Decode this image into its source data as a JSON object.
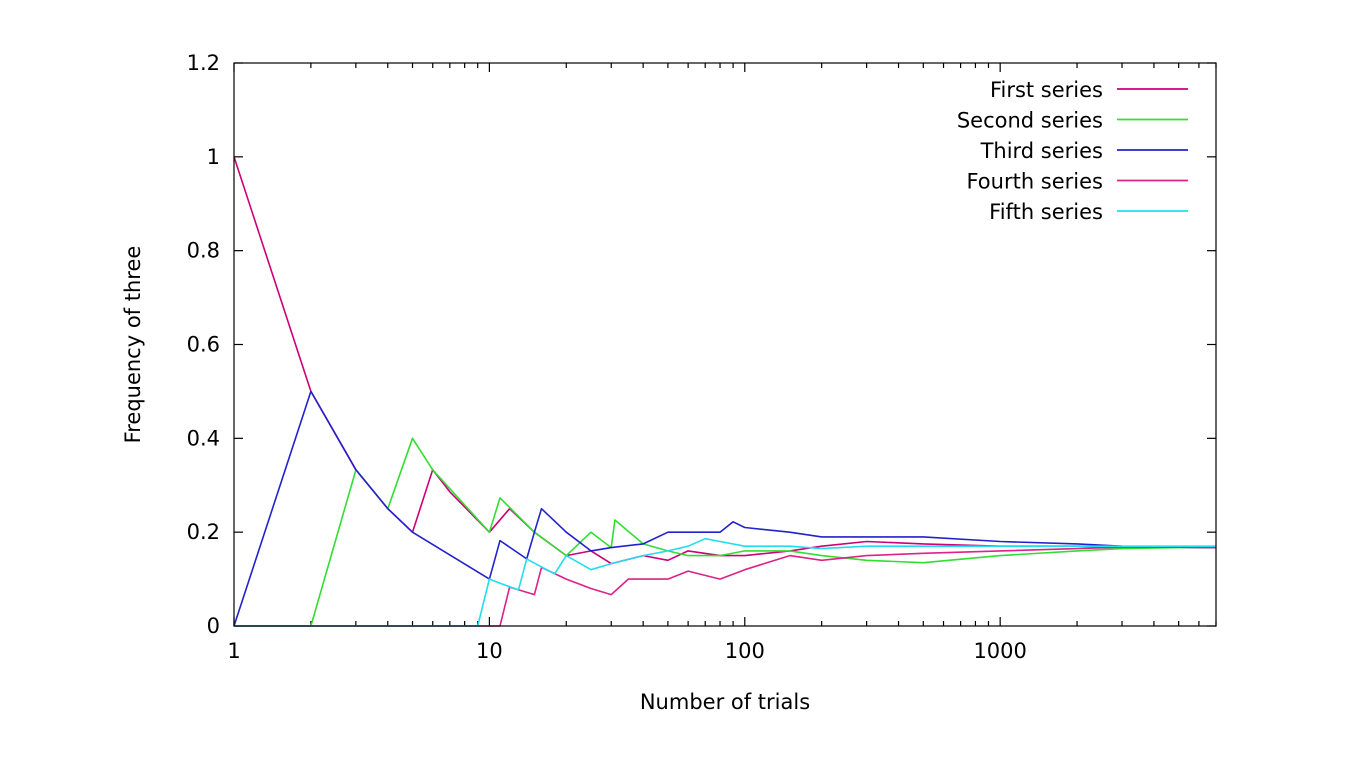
{
  "chart_data": {
    "type": "line",
    "xlabel": "Number of trials",
    "ylabel": "Frequency of three",
    "xscale": "log",
    "xlim": [
      1,
      7000
    ],
    "ylim": [
      0,
      1.2
    ],
    "grid": false,
    "legend_position": "top-right",
    "x_ticks": [
      {
        "value": 1,
        "label": "1"
      },
      {
        "value": 10,
        "label": "10"
      },
      {
        "value": 100,
        "label": "100"
      },
      {
        "value": 1000,
        "label": "1000"
      }
    ],
    "y_ticks": [
      {
        "value": 0,
        "label": "0"
      },
      {
        "value": 0.2,
        "label": "0.2"
      },
      {
        "value": 0.4,
        "label": "0.4"
      },
      {
        "value": 0.6,
        "label": "0.6"
      },
      {
        "value": 0.8,
        "label": "0.8"
      },
      {
        "value": 1,
        "label": "1"
      },
      {
        "value": 1.2,
        "label": "1.2"
      }
    ],
    "series": [
      {
        "name": "First series",
        "color": "#cc0077",
        "points": [
          [
            1,
            1
          ],
          [
            2,
            0.5
          ],
          [
            3,
            0.333
          ],
          [
            4,
            0.25
          ],
          [
            5,
            0.2
          ],
          [
            6,
            0.333
          ],
          [
            7,
            0.286
          ],
          [
            10,
            0.2
          ],
          [
            12,
            0.25
          ],
          [
            15,
            0.2
          ],
          [
            20,
            0.15
          ],
          [
            25,
            0.16
          ],
          [
            30,
            0.133
          ],
          [
            40,
            0.15
          ],
          [
            50,
            0.14
          ],
          [
            60,
            0.16
          ],
          [
            80,
            0.15
          ],
          [
            100,
            0.15
          ],
          [
            150,
            0.16
          ],
          [
            200,
            0.17
          ],
          [
            300,
            0.18
          ],
          [
            500,
            0.175
          ],
          [
            1000,
            0.17
          ],
          [
            2000,
            0.17
          ],
          [
            3000,
            0.168
          ],
          [
            5000,
            0.168
          ],
          [
            7000,
            0.167
          ]
        ]
      },
      {
        "name": "Second series",
        "color": "#33dd33",
        "points": [
          [
            1,
            0
          ],
          [
            2,
            0
          ],
          [
            3,
            0.333
          ],
          [
            4,
            0.25
          ],
          [
            5,
            0.4
          ],
          [
            6,
            0.333
          ],
          [
            10,
            0.2
          ],
          [
            11,
            0.273
          ],
          [
            15,
            0.2
          ],
          [
            20,
            0.15
          ],
          [
            25,
            0.2
          ],
          [
            30,
            0.167
          ],
          [
            31,
            0.226
          ],
          [
            40,
            0.175
          ],
          [
            50,
            0.16
          ],
          [
            60,
            0.15
          ],
          [
            80,
            0.15
          ],
          [
            100,
            0.16
          ],
          [
            150,
            0.16
          ],
          [
            200,
            0.15
          ],
          [
            300,
            0.14
          ],
          [
            500,
            0.135
          ],
          [
            1000,
            0.15
          ],
          [
            2000,
            0.16
          ],
          [
            3000,
            0.165
          ],
          [
            5000,
            0.167
          ],
          [
            7000,
            0.167
          ]
        ]
      },
      {
        "name": "Third series",
        "color": "#2222cc",
        "points": [
          [
            1,
            0
          ],
          [
            2,
            0.5
          ],
          [
            3,
            0.333
          ],
          [
            4,
            0.25
          ],
          [
            5,
            0.2
          ],
          [
            10,
            0.1
          ],
          [
            11,
            0.182
          ],
          [
            14,
            0.143
          ],
          [
            15,
            0.2
          ],
          [
            16,
            0.25
          ],
          [
            20,
            0.2
          ],
          [
            25,
            0.16
          ],
          [
            30,
            0.167
          ],
          [
            40,
            0.175
          ],
          [
            50,
            0.2
          ],
          [
            60,
            0.2
          ],
          [
            80,
            0.2
          ],
          [
            90,
            0.222
          ],
          [
            100,
            0.21
          ],
          [
            150,
            0.2
          ],
          [
            200,
            0.19
          ],
          [
            300,
            0.19
          ],
          [
            500,
            0.19
          ],
          [
            1000,
            0.18
          ],
          [
            2000,
            0.175
          ],
          [
            3000,
            0.17
          ],
          [
            5000,
            0.168
          ],
          [
            7000,
            0.167
          ]
        ]
      },
      {
        "name": "Fourth series",
        "color": "#dd2288",
        "points": [
          [
            1,
            0
          ],
          [
            10,
            0
          ],
          [
            11,
            0
          ],
          [
            12,
            0.083
          ],
          [
            15,
            0.067
          ],
          [
            16,
            0.125
          ],
          [
            20,
            0.1
          ],
          [
            25,
            0.08
          ],
          [
            30,
            0.067
          ],
          [
            35,
            0.1
          ],
          [
            40,
            0.1
          ],
          [
            50,
            0.1
          ],
          [
            60,
            0.117
          ],
          [
            80,
            0.1
          ],
          [
            100,
            0.12
          ],
          [
            150,
            0.15
          ],
          [
            200,
            0.14
          ],
          [
            300,
            0.15
          ],
          [
            500,
            0.155
          ],
          [
            1000,
            0.16
          ],
          [
            2000,
            0.165
          ],
          [
            3000,
            0.168
          ],
          [
            5000,
            0.168
          ],
          [
            7000,
            0.167
          ]
        ]
      },
      {
        "name": "Fifth series",
        "color": "#22ddee",
        "points": [
          [
            1,
            0
          ],
          [
            9,
            0
          ],
          [
            10,
            0.1
          ],
          [
            11,
            0.091
          ],
          [
            13,
            0.077
          ],
          [
            14,
            0.143
          ],
          [
            18,
            0.111
          ],
          [
            20,
            0.15
          ],
          [
            25,
            0.12
          ],
          [
            30,
            0.133
          ],
          [
            40,
            0.15
          ],
          [
            50,
            0.16
          ],
          [
            60,
            0.17
          ],
          [
            70,
            0.186
          ],
          [
            80,
            0.18
          ],
          [
            100,
            0.17
          ],
          [
            150,
            0.17
          ],
          [
            200,
            0.165
          ],
          [
            300,
            0.17
          ],
          [
            500,
            0.17
          ],
          [
            1000,
            0.17
          ],
          [
            2000,
            0.17
          ],
          [
            3000,
            0.17
          ],
          [
            5000,
            0.17
          ],
          [
            7000,
            0.17
          ]
        ]
      }
    ]
  }
}
